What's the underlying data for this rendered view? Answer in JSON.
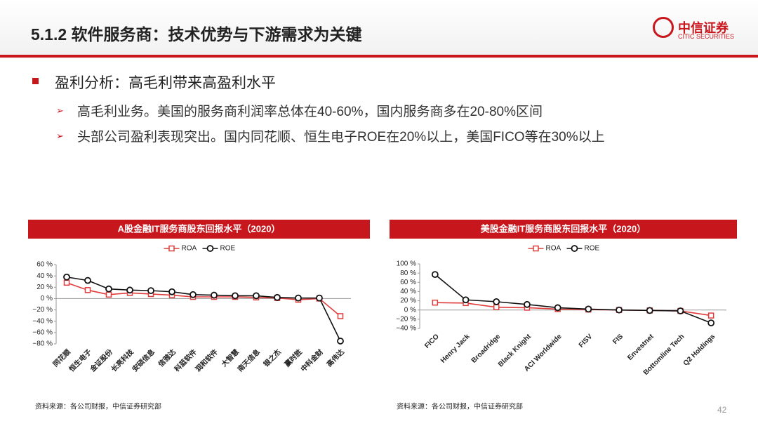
{
  "header": {
    "title": "5.1.2 软件服务商：技术优势与下游需求为关键",
    "logo_cn": "中信证券",
    "logo_en": "CITIC SECURITIES"
  },
  "bullets": {
    "main": "盈利分析：高毛利带来高盈利水平",
    "items": [
      "高毛利业务。美国的服务商利润率总体在40-60%，国内服务商多在20-80%区间",
      "头部公司盈利表现突出。国内同花顺、恒生电子ROE在20%以上，美国FICO等在30%以上"
    ]
  },
  "page_number": "42",
  "chart_data": [
    {
      "type": "line",
      "title": "A股金融IT服务商股东回报水平（2020）",
      "source": "资料来源：各公司财报，中信证券研究部",
      "categories": [
        "同花顺",
        "恒生电子",
        "金证股份",
        "长亮科技",
        "安硕信息",
        "信雅达",
        "科蓝软件",
        "润和软件",
        "大智慧",
        "南天信息",
        "银之杰",
        "赢时胜",
        "中科金财",
        "高伟达"
      ],
      "series": [
        {
          "name": "ROA",
          "color": "#e03c3c",
          "values": [
            28,
            15,
            7,
            10,
            8,
            6,
            3,
            3,
            3,
            2,
            1,
            -2,
            0,
            -31
          ]
        },
        {
          "name": "ROE",
          "color": "#111111",
          "values": [
            38,
            32,
            17,
            15,
            14,
            12,
            7,
            6,
            5,
            5,
            2,
            1,
            1,
            -75
          ]
        }
      ],
      "ylim": [
        -80,
        60
      ],
      "yticks": [
        {
          "value": -80,
          "label": "−80 %"
        },
        {
          "value": -60,
          "label": "−60 %"
        },
        {
          "value": -40,
          "label": "−40 %"
        },
        {
          "value": -20,
          "label": "−20 %"
        },
        {
          "value": 0,
          "label": "0 %"
        },
        {
          "value": 20,
          "label": "20 %"
        },
        {
          "value": 40,
          "label": "40 %"
        },
        {
          "value": 60,
          "label": "60 %"
        }
      ]
    },
    {
      "type": "line",
      "title": "美股金融IT服务商股东回报水平（2020）",
      "source": "资料来源：各公司财报，中信证券研究部",
      "categories": [
        "FICO",
        "Henry Jack",
        "Broadridge",
        "Black Knight",
        "ACI Worldwide",
        "FISV",
        "FIS",
        "Envestnet",
        "Bottomline Tech",
        "Q2 Holdings"
      ],
      "series": [
        {
          "name": "ROA",
          "color": "#e03c3c",
          "values": [
            16,
            15,
            6,
            5,
            2,
            1,
            0,
            -1,
            -2,
            -12
          ]
        },
        {
          "name": "ROE",
          "color": "#111111",
          "values": [
            77,
            22,
            18,
            12,
            5,
            2,
            0,
            -1,
            -2,
            -28
          ]
        }
      ],
      "ylim": [
        -40,
        100
      ],
      "yticks": [
        {
          "value": -40,
          "label": "−40 %"
        },
        {
          "value": -20,
          "label": "−20 %"
        },
        {
          "value": 0,
          "label": "0 %"
        },
        {
          "value": 20,
          "label": "20 %"
        },
        {
          "value": 40,
          "label": "40 %"
        },
        {
          "value": 60,
          "label": "60 %"
        },
        {
          "value": 80,
          "label": "80 %"
        },
        {
          "value": 100,
          "label": "100 %"
        }
      ]
    }
  ]
}
